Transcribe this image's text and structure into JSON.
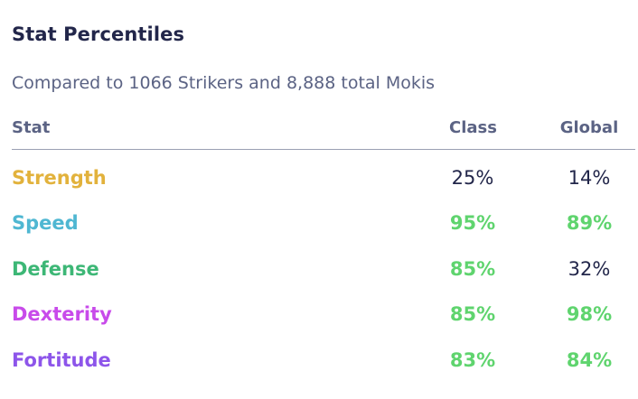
{
  "title": "Stat Percentiles",
  "subtitle": "Compared to 1066 Strikers and 8,888 total Mokis",
  "headers": {
    "stat": "Stat",
    "class": "Class",
    "global": "Global"
  },
  "colors": {
    "strength": "#e2b23c",
    "speed": "#4fb7d2",
    "defense": "#3db776",
    "dexterity": "#c84bea",
    "fortitude": "#8d55ea",
    "highlight": "#5fd46e",
    "normal": "#22264a"
  },
  "rows": [
    {
      "stat": "Strength",
      "class": "25%",
      "global": "14%",
      "class_high": false,
      "global_high": false
    },
    {
      "stat": "Speed",
      "class": "95%",
      "global": "89%",
      "class_high": true,
      "global_high": true
    },
    {
      "stat": "Defense",
      "class": "85%",
      "global": "32%",
      "class_high": true,
      "global_high": false
    },
    {
      "stat": "Dexterity",
      "class": "85%",
      "global": "98%",
      "class_high": true,
      "global_high": true
    },
    {
      "stat": "Fortitude",
      "class": "83%",
      "global": "84%",
      "class_high": true,
      "global_high": true
    }
  ]
}
